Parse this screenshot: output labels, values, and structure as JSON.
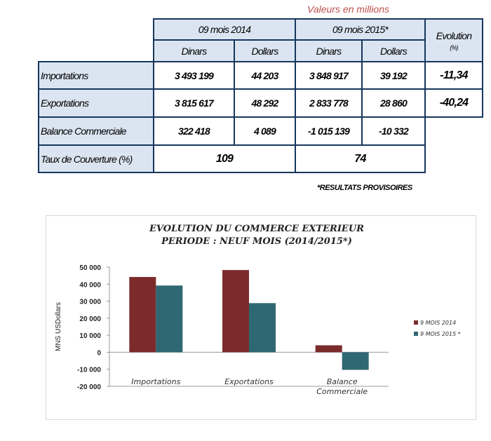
{
  "note": "Valeurs en millions",
  "table": {
    "periods": [
      "09 mois 2014",
      "09 mois  2015*"
    ],
    "evolution_header": "Evolution",
    "evolution_unit": "(%)",
    "currencies": [
      "Dinars",
      "Dollars",
      "Dinars",
      "Dollars"
    ],
    "rows": [
      {
        "label": "Importations",
        "values": [
          "3 493 199",
          "44 203",
          "3 848 917",
          "39 192"
        ],
        "evolution": "-11,34"
      },
      {
        "label": "Exportations",
        "values": [
          "3 815 617",
          "48 292",
          "2 833 778",
          "28 860"
        ],
        "evolution": "-40,24"
      },
      {
        "label": "Balance Commerciale",
        "values": [
          "322 418",
          "4 089",
          "-1 015 139",
          "-10 332"
        ]
      }
    ],
    "coverage": {
      "label": "Taux de Couverture (%)",
      "values": [
        "109",
        "74"
      ]
    }
  },
  "footnote": "*RESULTATS PROVISOIRES",
  "chart_data": {
    "type": "bar",
    "title": [
      "EVOLUTION DU COMMERCE EXTERIEUR",
      "PERIODE : NEUF MOIS (2014/2015*)"
    ],
    "ylabel": "MNS USDollars",
    "categories": [
      "Importations",
      "Exportations",
      "Balance Commerciale"
    ],
    "category_lines": [
      [
        "Importations"
      ],
      [
        "Exportations"
      ],
      [
        "Balance",
        "Commerciale"
      ]
    ],
    "series": [
      {
        "name": "9 MOIS 2014",
        "values": [
          44203,
          48292,
          4089
        ],
        "color": "#7b2b2b"
      },
      {
        "name": "9 MOIS 2015 *",
        "values": [
          39192,
          28860,
          -10332
        ],
        "color": "#2f6872"
      }
    ],
    "ylim": [
      -20000,
      50000
    ],
    "yticks": [
      50000,
      40000,
      30000,
      20000,
      10000,
      0,
      -10000,
      -20000
    ],
    "ytick_labels": [
      "50 000",
      "40 000",
      "30 000",
      "20 000",
      "10 000",
      "0",
      "-10 000",
      "-20 000"
    ],
    "legend": "right"
  }
}
